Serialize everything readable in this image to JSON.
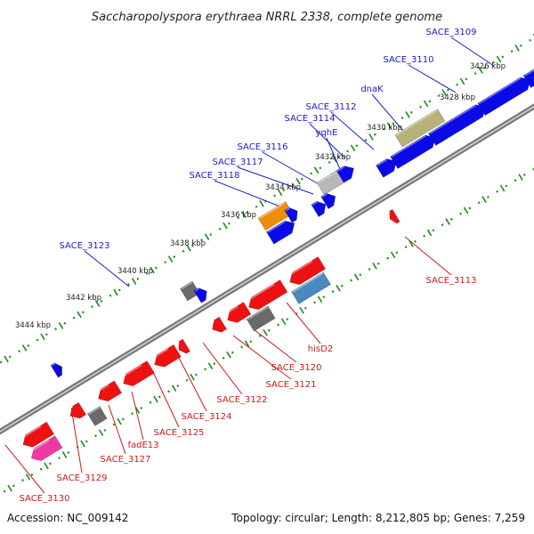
{
  "title": "Saccharopolyspora erythraea NRRL 2338, complete genome",
  "footer": {
    "accession": "Accession: NC_009142",
    "topology": "Topology: circular; Length: 8,212,805 bp; Genes: 7,259"
  },
  "scale_labels": [
    "3426 kbp",
    "3428 kbp",
    "3430 kbp",
    "3432 kbp",
    "3434 kbp",
    "3436 kbp",
    "3438 kbp",
    "3440 kbp",
    "3442 kbp",
    "3444 kbp"
  ],
  "forward_labels": [
    "SACE_3109",
    "SACE_3110",
    "dnaK",
    "SACE_3112",
    "SACE_3114",
    "yqhE",
    "SACE_3116",
    "SACE_3117",
    "SACE_3118",
    "SACE_3123"
  ],
  "reverse_labels": [
    "SACE_3113",
    "hisD2",
    "SACE_3120",
    "SACE_3121",
    "SACE_3122",
    "SACE_3124",
    "SACE_3125",
    "fadE13",
    "SACE_3127",
    "SACE_3129",
    "SACE_3130"
  ],
  "colors": {
    "forward": "#0a0ae6",
    "reverse": "#ee1111",
    "backbone": "#7a7a7a",
    "scale_dots": "#1a8a1a",
    "fwd_label": "#1a1acc",
    "rev_label": "#cc1a1a",
    "olive": "#b7b27a",
    "orange": "#f08c0a",
    "gray_dark": "#6a6a6a",
    "gray_light": "#b8b8b8",
    "steel_blue": "#4a88c0",
    "pink": "#ee3aa0"
  }
}
